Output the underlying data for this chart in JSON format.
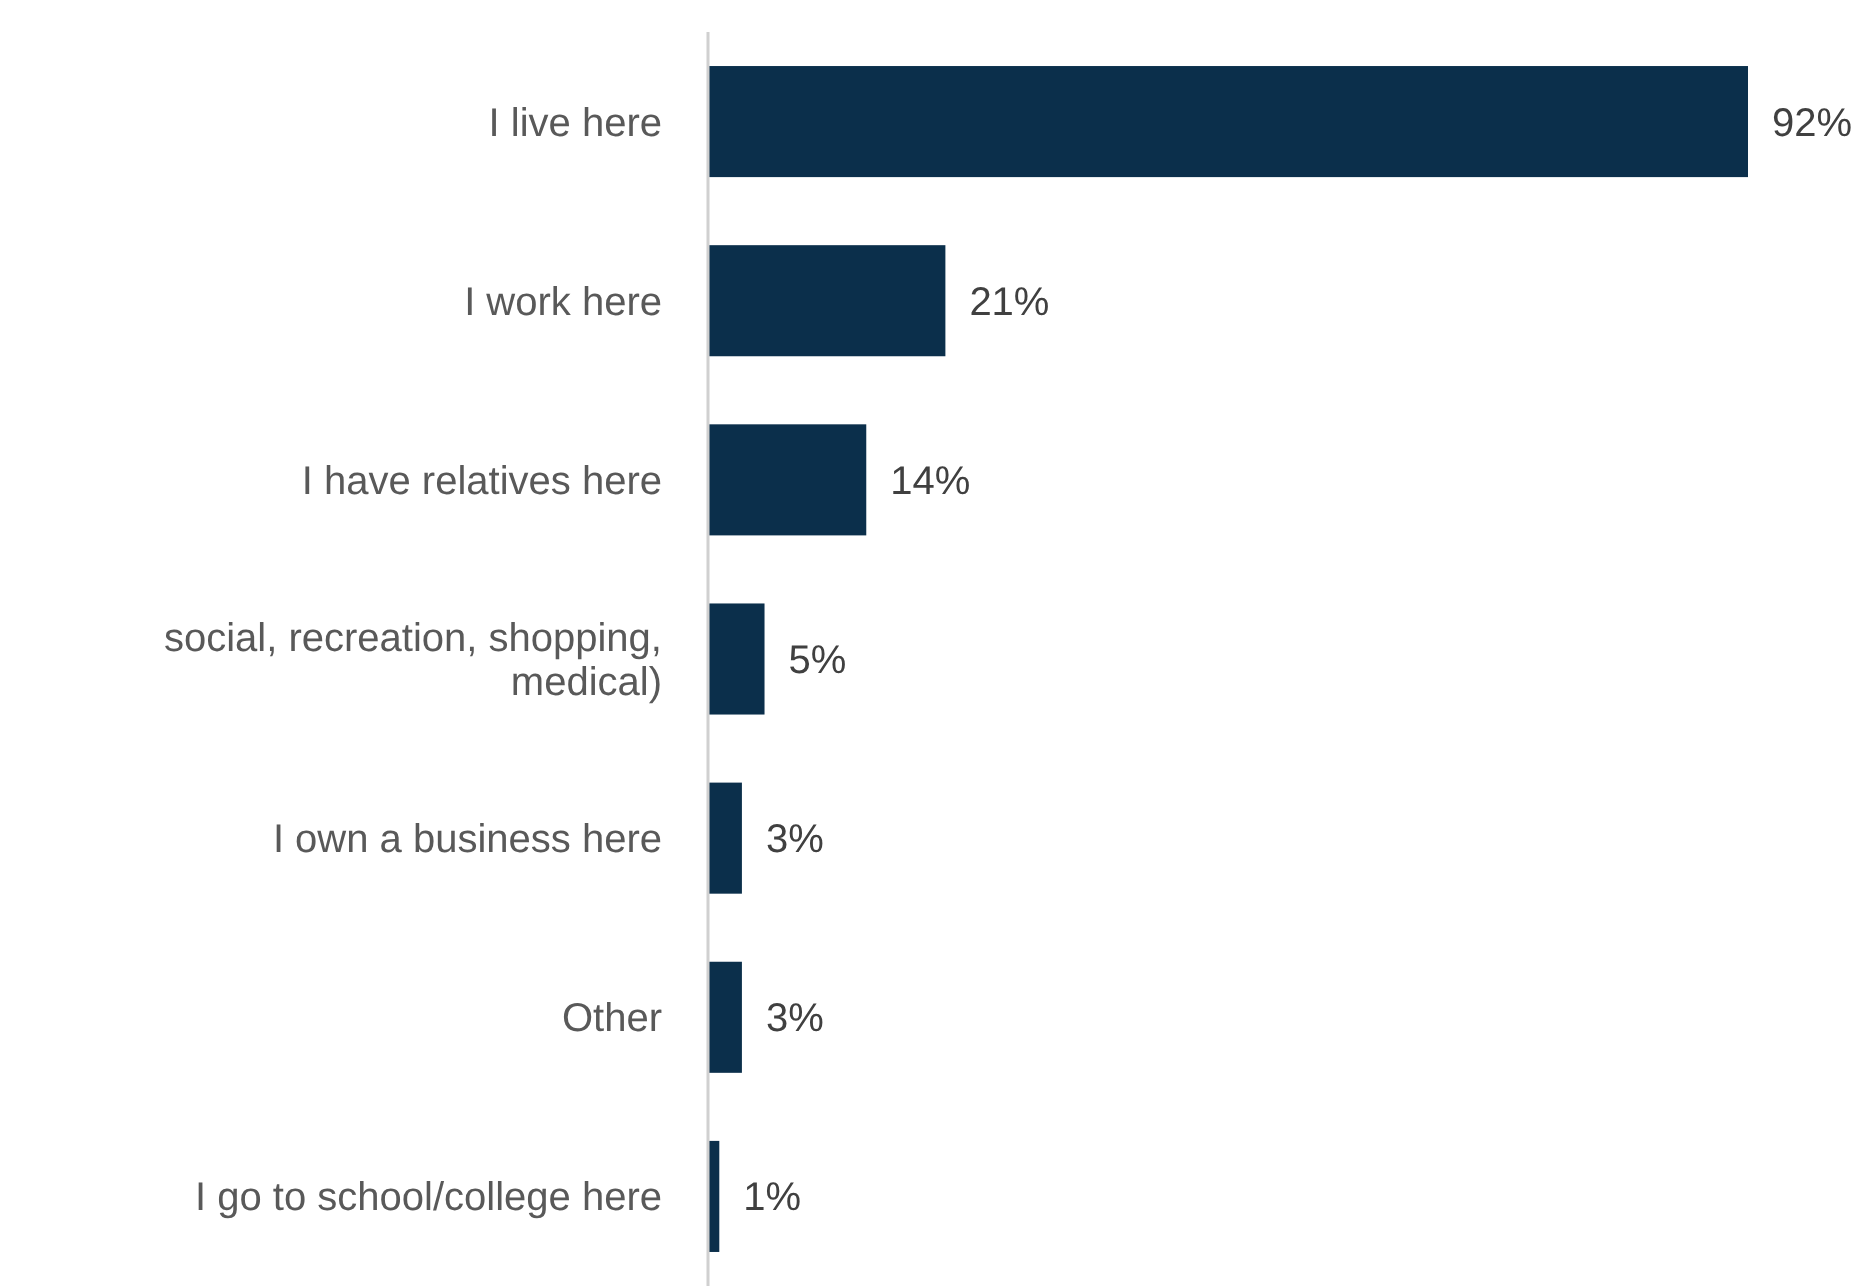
{
  "chart_data": {
    "type": "bar",
    "orientation": "horizontal",
    "categories": [
      "I live here",
      "I work here",
      "I have relatives here",
      "social, recreation, shopping, medical)",
      "I own a business here",
      "Other",
      "I go to school/college here"
    ],
    "values": [
      92,
      21,
      14,
      5,
      3,
      3,
      1
    ],
    "value_labels": [
      "92%",
      "21%",
      "14%",
      "5%",
      "3%",
      "3%",
      "1%"
    ],
    "color": "#0b2f4b"
  }
}
